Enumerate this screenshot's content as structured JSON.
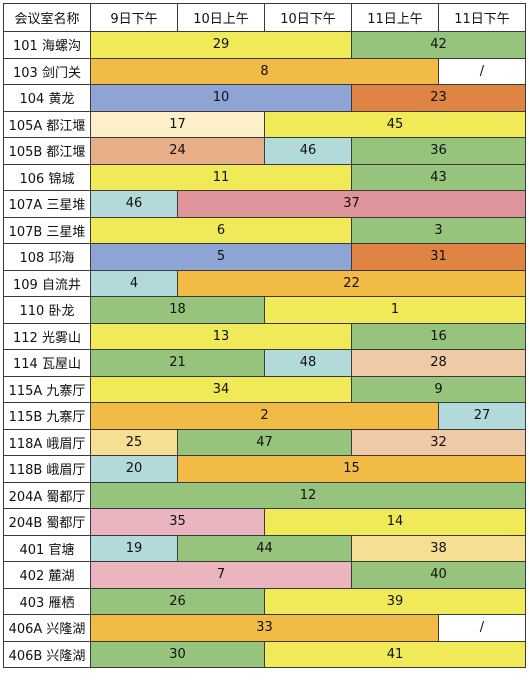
{
  "table": {
    "headers": [
      "会议室名称",
      "9日下午",
      "10日上午",
      "10日下午",
      "11日上午",
      "11日下午"
    ],
    "rows": [
      {
        "room": "101 海螺沟",
        "segments": [
          {
            "value": "29",
            "span": 3,
            "color": "#f1ea58"
          },
          {
            "value": "42",
            "span": 2,
            "color": "#97c47c"
          }
        ]
      },
      {
        "room": "103 剑门关",
        "segments": [
          {
            "value": "8",
            "span": 4,
            "color": "#f2bb45"
          },
          {
            "value": "/",
            "span": 1,
            "color": "#ffffff"
          }
        ]
      },
      {
        "room": "104 黄龙",
        "segments": [
          {
            "value": "10",
            "span": 3,
            "color": "#8ea4d4"
          },
          {
            "value": "23",
            "span": 2,
            "color": "#df8443"
          }
        ]
      },
      {
        "room": "105A 都江堰",
        "segments": [
          {
            "value": "17",
            "span": 2,
            "color": "#fcefca"
          },
          {
            "value": "45",
            "span": 3,
            "color": "#f1ea58"
          }
        ]
      },
      {
        "room": "105B 都江堰",
        "segments": [
          {
            "value": "24",
            "span": 2,
            "color": "#e8ae87"
          },
          {
            "value": "46",
            "span": 1,
            "color": "#b3dadb"
          },
          {
            "value": "36",
            "span": 2,
            "color": "#97c47c"
          }
        ]
      },
      {
        "room": "106 锦城",
        "segments": [
          {
            "value": "11",
            "span": 3,
            "color": "#f1ea58"
          },
          {
            "value": "43",
            "span": 2,
            "color": "#97c47c"
          }
        ]
      },
      {
        "room": "107A 三星堆",
        "segments": [
          {
            "value": "46",
            "span": 1,
            "color": "#b3dadb"
          },
          {
            "value": "37",
            "span": 4,
            "color": "#df939b"
          }
        ]
      },
      {
        "room": "107B 三星堆",
        "segments": [
          {
            "value": "6",
            "span": 3,
            "color": "#f1ea58"
          },
          {
            "value": "3",
            "span": 2,
            "color": "#97c47c"
          }
        ]
      },
      {
        "room": "108 邛海",
        "segments": [
          {
            "value": "5",
            "span": 3,
            "color": "#8ea4d4"
          },
          {
            "value": "31",
            "span": 2,
            "color": "#df8443"
          }
        ]
      },
      {
        "room": "109 自流井",
        "segments": [
          {
            "value": "4",
            "span": 1,
            "color": "#b3dadb"
          },
          {
            "value": "22",
            "span": 4,
            "color": "#f2bb45"
          }
        ]
      },
      {
        "room": "110 卧龙",
        "segments": [
          {
            "value": "18",
            "span": 2,
            "color": "#97c47c"
          },
          {
            "value": "1",
            "span": 3,
            "color": "#f1ea58"
          }
        ]
      },
      {
        "room": "112 光雾山",
        "segments": [
          {
            "value": "13",
            "span": 3,
            "color": "#f1ea58"
          },
          {
            "value": "16",
            "span": 2,
            "color": "#97c47c"
          }
        ]
      },
      {
        "room": "114 瓦屋山",
        "segments": [
          {
            "value": "21",
            "span": 2,
            "color": "#97c47c"
          },
          {
            "value": "48",
            "span": 1,
            "color": "#b3dadb"
          },
          {
            "value": "28",
            "span": 2,
            "color": "#f0c9a7"
          }
        ]
      },
      {
        "room": "115A 九寨厅",
        "segments": [
          {
            "value": "34",
            "span": 3,
            "color": "#f1ea58"
          },
          {
            "value": "9",
            "span": 2,
            "color": "#97c47c"
          }
        ]
      },
      {
        "room": "115B 九寨厅",
        "segments": [
          {
            "value": "2",
            "span": 4,
            "color": "#f2bb45"
          },
          {
            "value": "27",
            "span": 1,
            "color": "#b3dadb"
          }
        ]
      },
      {
        "room": "118A 峨眉厅",
        "segments": [
          {
            "value": "25",
            "span": 1,
            "color": "#f6de93"
          },
          {
            "value": "47",
            "span": 2,
            "color": "#97c47c"
          },
          {
            "value": "32",
            "span": 2,
            "color": "#f0c9a7"
          }
        ]
      },
      {
        "room": "118B 峨眉厅",
        "segments": [
          {
            "value": "20",
            "span": 1,
            "color": "#b3dadb"
          },
          {
            "value": "15",
            "span": 4,
            "color": "#f2bb45"
          }
        ]
      },
      {
        "room": "204A 蜀都厅",
        "segments": [
          {
            "value": "12",
            "span": 5,
            "color": "#97c47c"
          }
        ]
      },
      {
        "room": "204B 蜀都厅",
        "segments": [
          {
            "value": "35",
            "span": 2,
            "color": "#ebb5bf"
          },
          {
            "value": "14",
            "span": 3,
            "color": "#f1ea58"
          }
        ]
      },
      {
        "room": "401 官塘",
        "segments": [
          {
            "value": "19",
            "span": 1,
            "color": "#b3dadb"
          },
          {
            "value": "44",
            "span": 2,
            "color": "#97c47c"
          },
          {
            "value": "38",
            "span": 2,
            "color": "#f6de93"
          }
        ]
      },
      {
        "room": "402 麓湖",
        "segments": [
          {
            "value": "7",
            "span": 3,
            "color": "#ebb5bf"
          },
          {
            "value": "40",
            "span": 2,
            "color": "#97c47c"
          }
        ]
      },
      {
        "room": "403 雁栖",
        "segments": [
          {
            "value": "26",
            "span": 2,
            "color": "#97c47c"
          },
          {
            "value": "39",
            "span": 3,
            "color": "#f1ea58"
          }
        ]
      },
      {
        "room": "406A 兴隆湖",
        "segments": [
          {
            "value": "33",
            "span": 4,
            "color": "#f2bb45"
          },
          {
            "value": "/",
            "span": 1,
            "color": "#ffffff"
          }
        ]
      },
      {
        "room": "406B 兴隆湖",
        "segments": [
          {
            "value": "30",
            "span": 2,
            "color": "#97c47c"
          },
          {
            "value": "41",
            "span": 3,
            "color": "#f1ea58"
          }
        ]
      }
    ]
  }
}
